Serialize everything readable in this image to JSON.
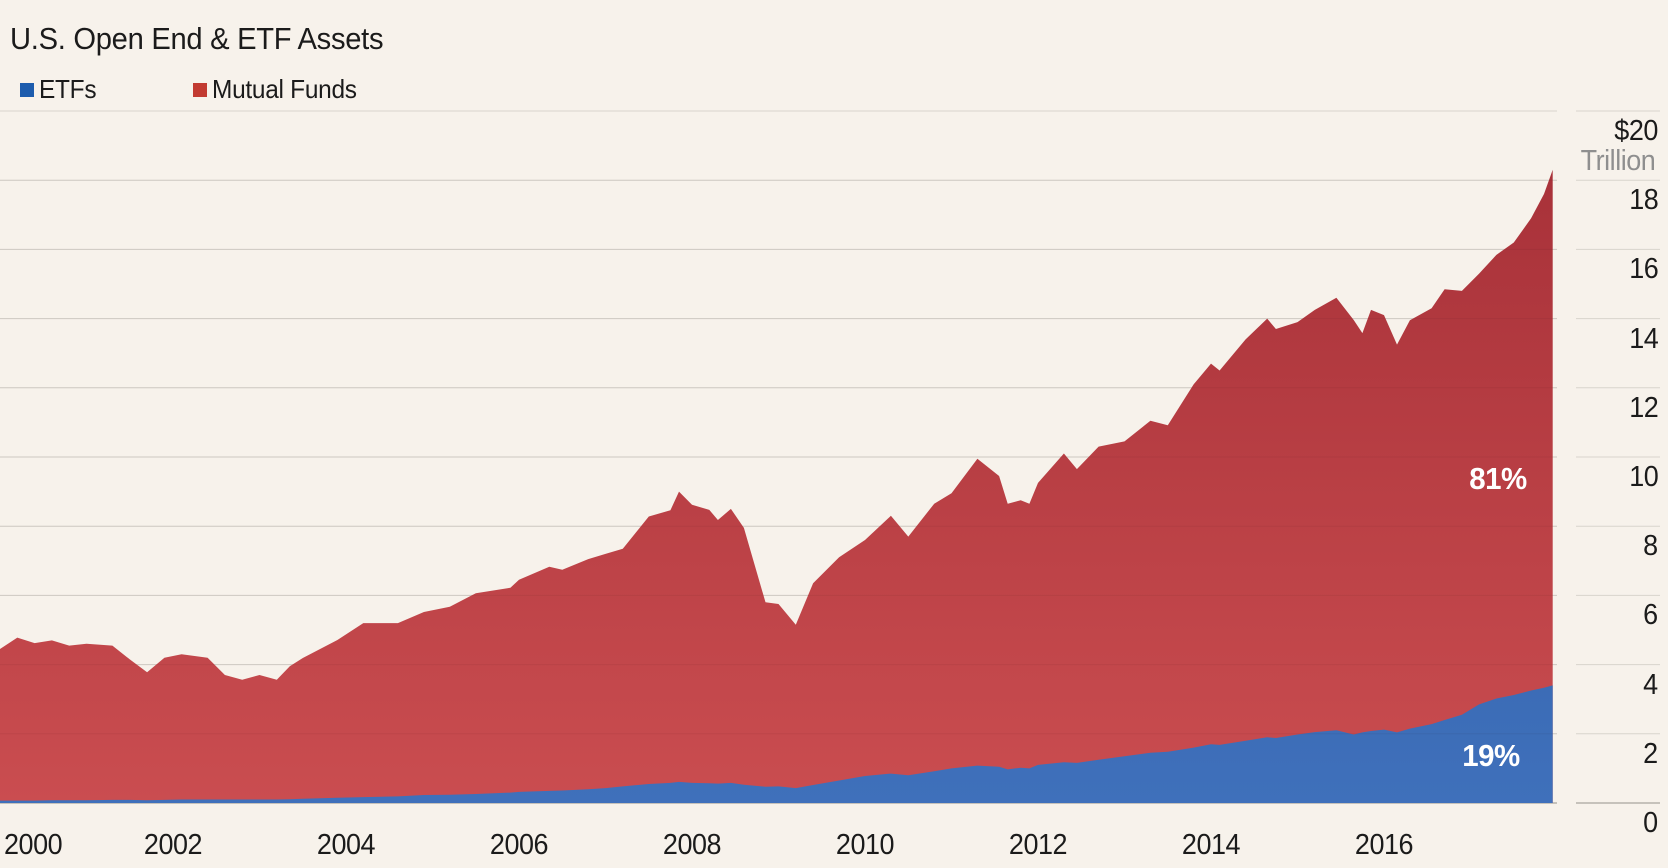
{
  "page": {
    "background_color": "#F7F2EB",
    "text_color": "#1B1B1B",
    "muted_text_color": "#8F8F8F"
  },
  "chart_data": {
    "type": "area",
    "stacked": true,
    "title": "U.S. Open End & ETF Assets",
    "gridline_color": "#D8D4CD",
    "axis_line_color": "#C6C2BB",
    "legend_position": "top-left",
    "y_axis": {
      "side": "right",
      "min": 0,
      "max": 20,
      "step": 2,
      "tick_labels_top_to_bottom": [
        "$20",
        "18",
        "16",
        "14",
        "12",
        "10",
        "8",
        "6",
        "4",
        "2",
        "0"
      ],
      "unit": "Trillion"
    },
    "x_axis": {
      "min": 2000,
      "max": 2018,
      "tick_years": [
        2000,
        2002,
        2004,
        2006,
        2008,
        2010,
        2012,
        2014,
        2016
      ],
      "tick_labels": [
        "2000",
        "2002",
        "2004",
        "2006",
        "2008",
        "2010",
        "2012",
        "2014",
        "2016"
      ]
    },
    "x": [
      2000.0,
      2000.2,
      2000.4,
      2000.6,
      2000.8,
      2001.0,
      2001.3,
      2001.5,
      2001.7,
      2001.9,
      2002.1,
      2002.4,
      2002.6,
      2002.8,
      2003.0,
      2003.2,
      2003.35,
      2003.5,
      2003.9,
      2004.2,
      2004.6,
      2004.9,
      2005.2,
      2005.5,
      2005.9,
      2006.0,
      2006.35,
      2006.5,
      2006.8,
      2007.0,
      2007.2,
      2007.5,
      2007.75,
      2007.85,
      2008.0,
      2008.2,
      2008.3,
      2008.45,
      2008.6,
      2008.85,
      2009.0,
      2009.2,
      2009.4,
      2009.7,
      2010.0,
      2010.3,
      2010.5,
      2010.8,
      2011.0,
      2011.3,
      2011.55,
      2011.65,
      2011.8,
      2011.9,
      2012.0,
      2012.3,
      2012.45,
      2012.7,
      2013.0,
      2013.3,
      2013.5,
      2013.8,
      2014.0,
      2014.1,
      2014.4,
      2014.65,
      2014.75,
      2015.0,
      2015.2,
      2015.45,
      2015.65,
      2015.75,
      2015.85,
      2016.0,
      2016.15,
      2016.3,
      2016.55,
      2016.7,
      2016.9,
      2017.1,
      2017.3,
      2017.5,
      2017.7,
      2017.85,
      2017.95
    ],
    "series": [
      {
        "name": "ETFs",
        "legend_color": "#1D5CAD",
        "fill_top_color": "#29599F",
        "fill_bottom_color": "#3F70BB",
        "share_label": "19%",
        "values": [
          0.07,
          0.07,
          0.07,
          0.08,
          0.08,
          0.08,
          0.09,
          0.09,
          0.08,
          0.09,
          0.1,
          0.1,
          0.1,
          0.1,
          0.1,
          0.1,
          0.11,
          0.12,
          0.15,
          0.17,
          0.19,
          0.23,
          0.24,
          0.26,
          0.3,
          0.32,
          0.35,
          0.36,
          0.4,
          0.43,
          0.48,
          0.55,
          0.58,
          0.61,
          0.58,
          0.57,
          0.56,
          0.58,
          0.53,
          0.47,
          0.48,
          0.43,
          0.52,
          0.65,
          0.78,
          0.85,
          0.8,
          0.92,
          1.0,
          1.08,
          1.05,
          0.97,
          1.02,
          1.0,
          1.1,
          1.18,
          1.16,
          1.25,
          1.35,
          1.45,
          1.48,
          1.6,
          1.7,
          1.68,
          1.8,
          1.9,
          1.88,
          1.98,
          2.05,
          2.1,
          1.98,
          2.04,
          2.08,
          2.12,
          2.04,
          2.15,
          2.28,
          2.4,
          2.55,
          2.85,
          3.02,
          3.12,
          3.25,
          3.33,
          3.4
        ]
      },
      {
        "name": "Mutual Funds",
        "legend_color": "#C23B31",
        "fill_top_color": "#A52F37",
        "fill_bottom_color": "#CA4D50",
        "share_label": "81%",
        "values": [
          4.38,
          4.71,
          4.55,
          4.62,
          4.47,
          4.52,
          4.46,
          4.06,
          3.7,
          4.11,
          4.2,
          4.1,
          3.6,
          3.46,
          3.6,
          3.46,
          3.84,
          4.07,
          4.56,
          5.03,
          5.01,
          5.29,
          5.43,
          5.8,
          5.92,
          6.13,
          6.48,
          6.38,
          6.65,
          6.77,
          6.87,
          7.73,
          7.88,
          8.39,
          8.04,
          7.9,
          7.62,
          7.92,
          7.42,
          5.33,
          5.27,
          4.72,
          5.83,
          6.45,
          6.82,
          7.45,
          6.9,
          7.73,
          7.95,
          8.87,
          8.4,
          7.68,
          7.73,
          7.65,
          8.15,
          8.92,
          8.49,
          9.05,
          9.1,
          9.6,
          9.44,
          10.5,
          11.0,
          10.82,
          11.6,
          12.1,
          11.82,
          11.92,
          12.2,
          12.5,
          11.98,
          11.54,
          12.17,
          11.98,
          11.21,
          11.8,
          12.02,
          12.45,
          12.25,
          12.45,
          12.82,
          13.08,
          13.65,
          14.27,
          14.9
        ]
      }
    ]
  }
}
